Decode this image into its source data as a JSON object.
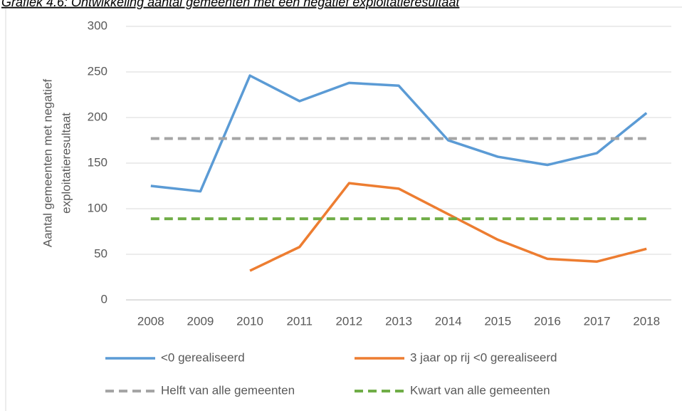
{
  "chart_data": {
    "type": "line",
    "title": "Grafiek 4.6: Ontwikkeling aantal gemeenten met een negatief exploitatieresultaat",
    "y_label": [
      "Aantal gemeenten met negatief",
      "exploitatieresultaat"
    ],
    "categories": [
      "2008",
      "2009",
      "2010",
      "2011",
      "2012",
      "2013",
      "2014",
      "2015",
      "2016",
      "2017",
      "2018"
    ],
    "series": [
      {
        "name": "<0 gerealiseerd",
        "color": "#5b9bd5",
        "dashed": false,
        "values": [
          125,
          119,
          246,
          218,
          238,
          235,
          175,
          157,
          148,
          161,
          205
        ]
      },
      {
        "name": "3 jaar op rij <0 gerealiseerd",
        "color": "#ed7d31",
        "dashed": false,
        "values": [
          null,
          null,
          32,
          58,
          128,
          122,
          94,
          66,
          45,
          42,
          56
        ]
      },
      {
        "name": "Helft van alle gemeenten",
        "color": "#a5a5a5",
        "dashed": true,
        "values": [
          177,
          177,
          177,
          177,
          177,
          177,
          177,
          177,
          177,
          177,
          177
        ]
      },
      {
        "name": "Kwart van alle gemeenten",
        "color": "#70ad47",
        "dashed": true,
        "values": [
          89,
          89,
          89,
          89,
          89,
          89,
          89,
          89,
          89,
          89,
          89
        ]
      }
    ],
    "ylim": [
      0,
      300
    ],
    "yticks": [
      0,
      50,
      100,
      150,
      200,
      250,
      300
    ],
    "grid": true,
    "legend": "bottom"
  }
}
